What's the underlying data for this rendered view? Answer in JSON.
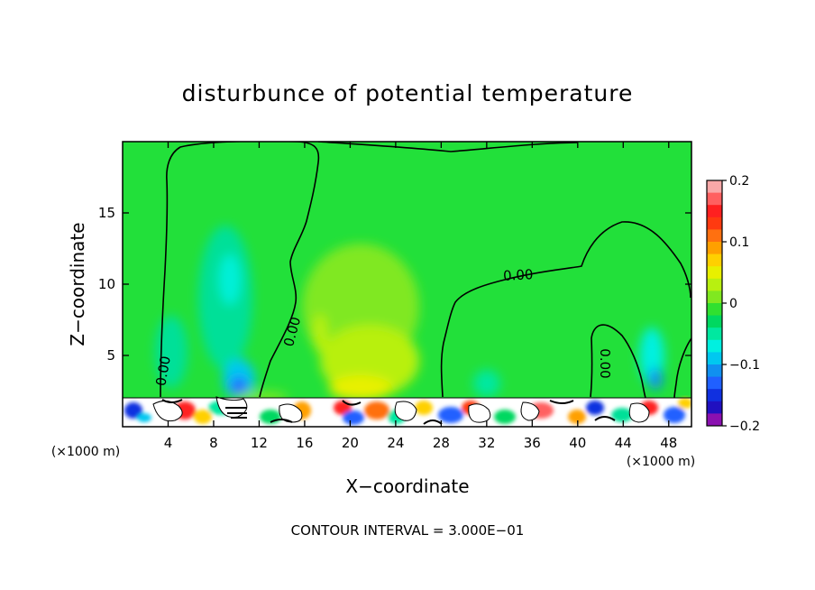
{
  "chart_data": {
    "type": "heatmap",
    "title": "disturbunce of potential temperature",
    "xlabel": "X−coordinate",
    "ylabel": "Z−coordinate",
    "x_unit_left": "(×1000 m)",
    "x_unit_right": "(×1000 m)",
    "xlim": [
      0,
      50
    ],
    "ylim": [
      0,
      20
    ],
    "x_ticks": [
      4,
      8,
      12,
      16,
      20,
      24,
      28,
      32,
      36,
      40,
      44,
      48
    ],
    "x_tick_labels": [
      "4",
      "8",
      "12",
      "16",
      "20",
      "24",
      "28",
      "32",
      "36",
      "40",
      "44",
      "48"
    ],
    "y_ticks": [
      5,
      10,
      15
    ],
    "y_tick_labels": [
      "5",
      "10",
      "15"
    ],
    "colorbar": {
      "range": [
        -0.2,
        0.2
      ],
      "ticks": [
        0.2,
        0.1,
        0,
        -0.1,
        -0.2
      ],
      "tick_labels": [
        "0.2",
        "0.1",
        "0",
        "−0.1",
        "−0.2"
      ],
      "colors": [
        "#f9a8a8",
        "#ff6060",
        "#ff2020",
        "#ff3a10",
        "#ff7010",
        "#ffa000",
        "#ffd000",
        "#e8f000",
        "#b8f010",
        "#80e820",
        "#30e030",
        "#00d860",
        "#00e8a0",
        "#00f0e0",
        "#00c8f0",
        "#1090f0",
        "#2060ff",
        "#1030e0",
        "#2010c0",
        "#8a10b0"
      ]
    },
    "contour_labels": [
      "0.00",
      "0.00",
      "0.00",
      "0.00"
    ],
    "contour_interval": "CONTOUR INTERVAL = 3.000E−01"
  }
}
